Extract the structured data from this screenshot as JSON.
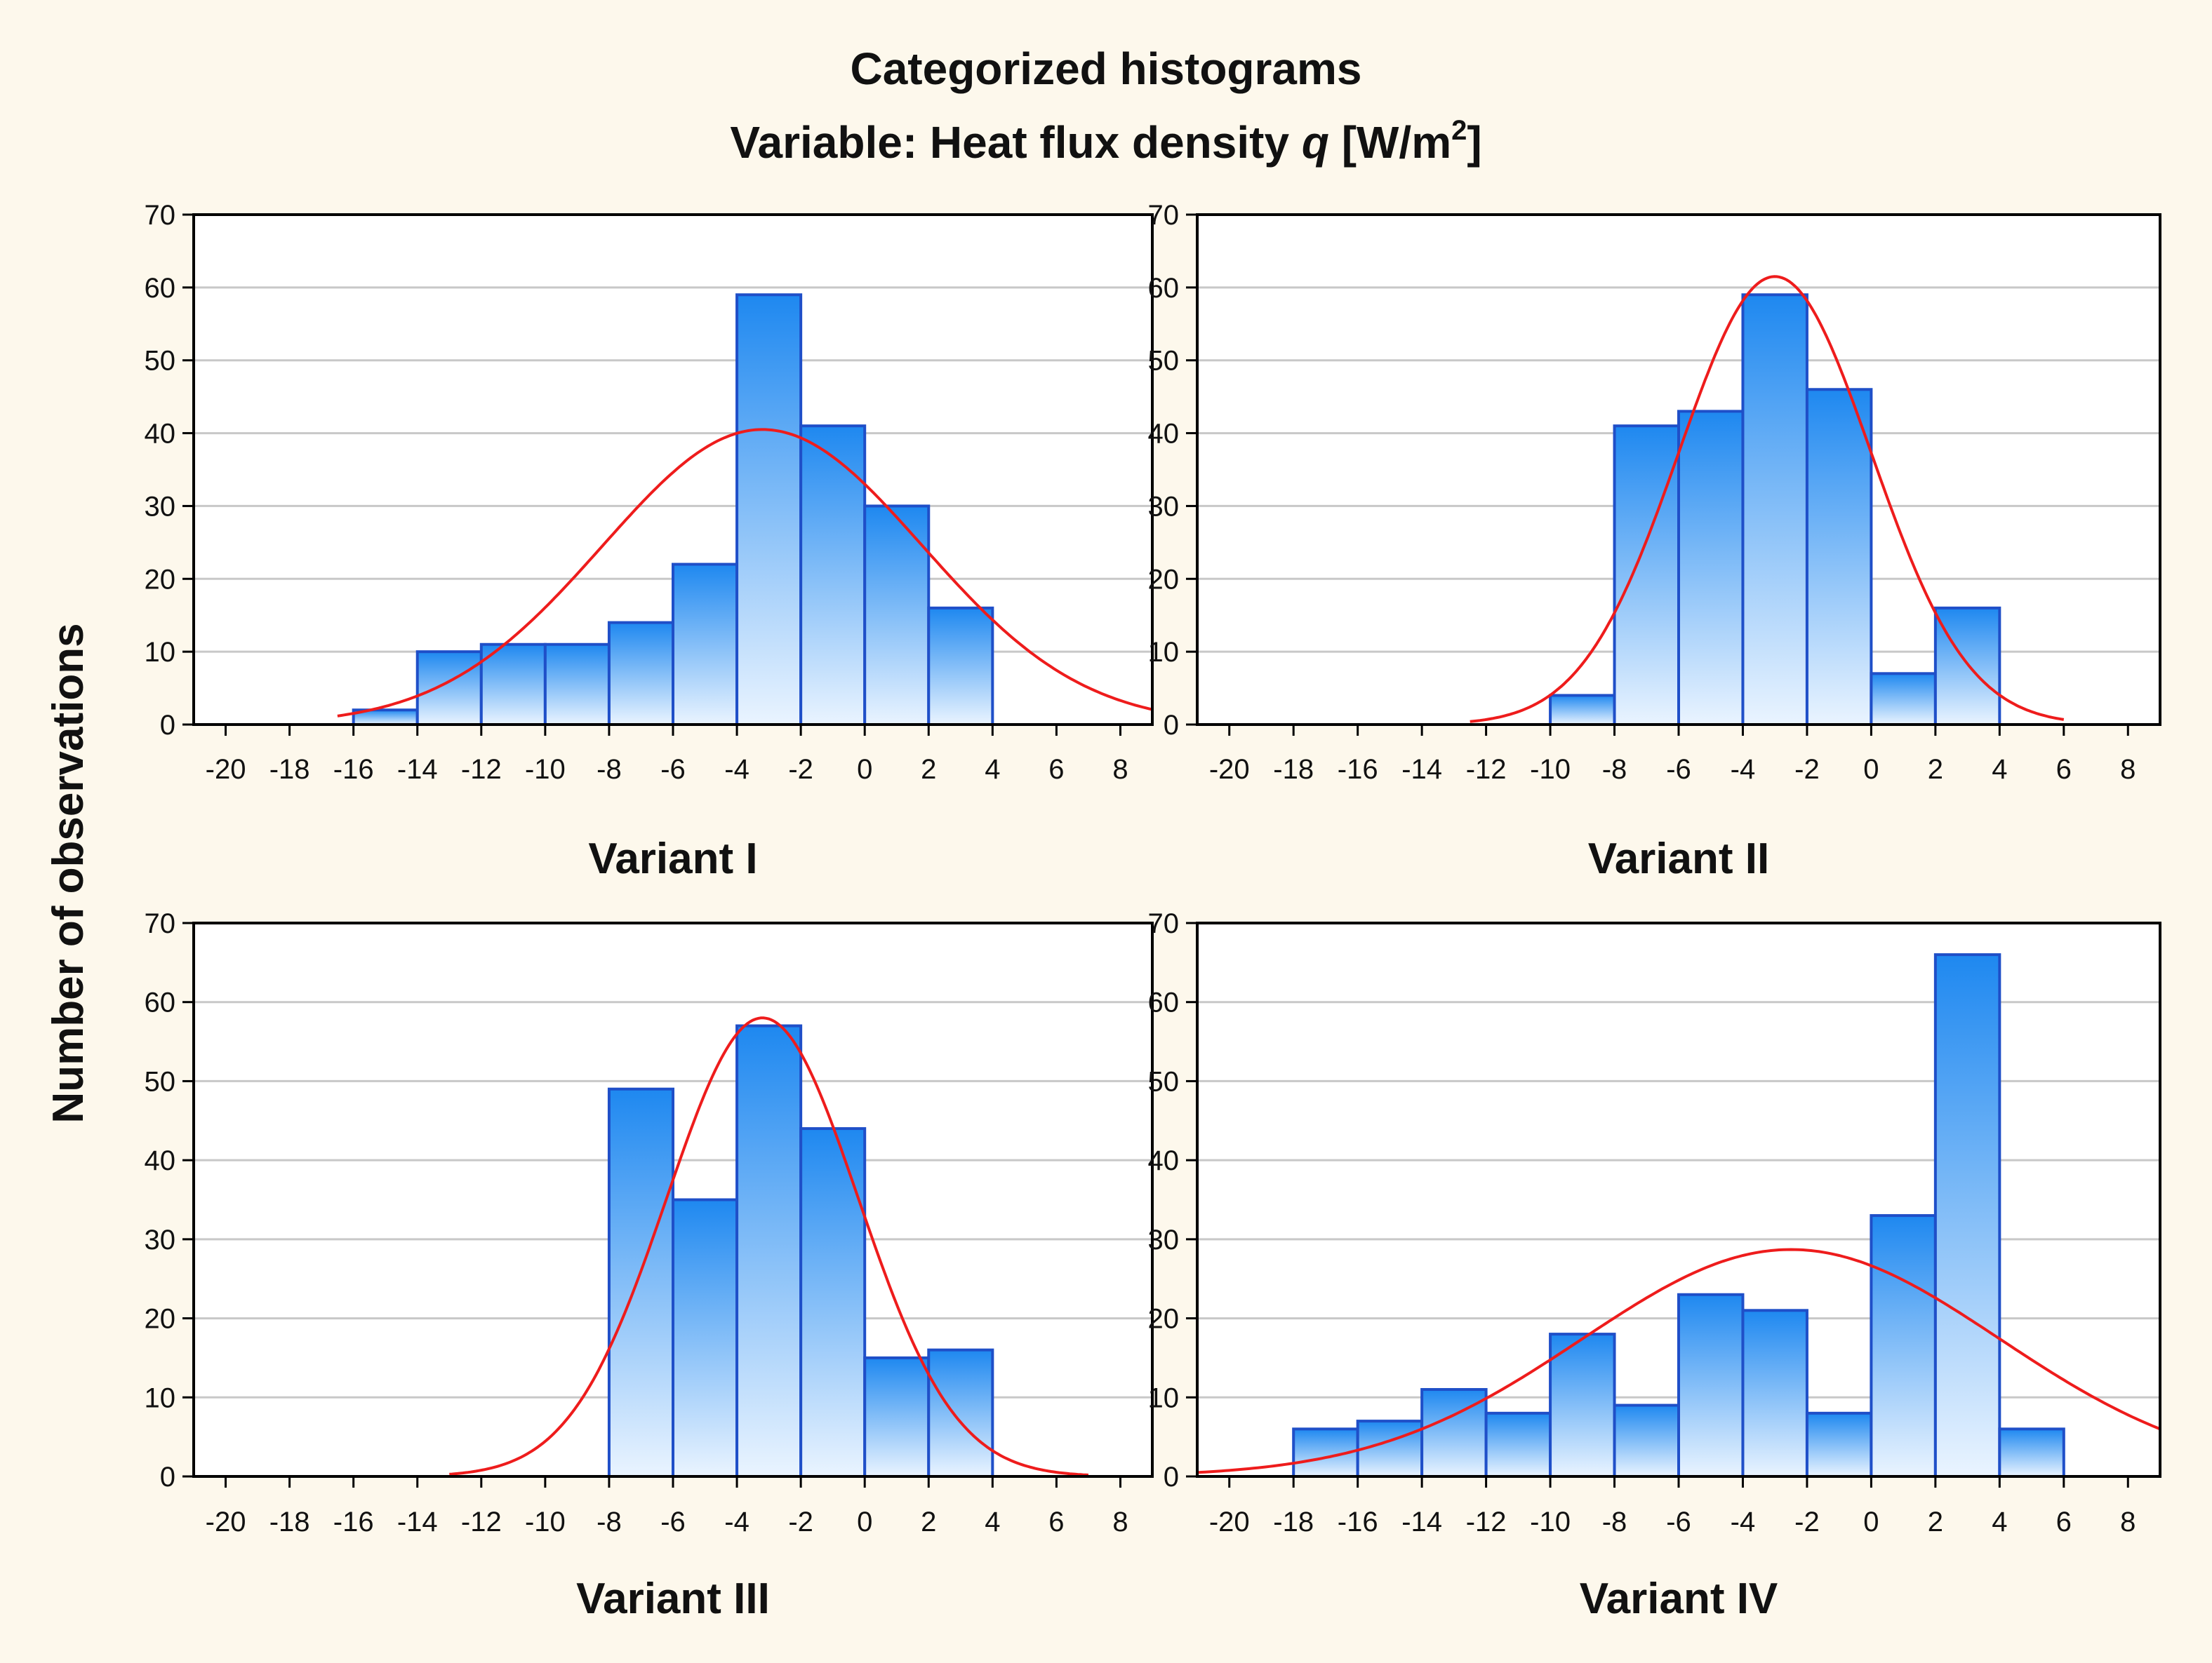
{
  "figure": {
    "title_line1": "Categorized histograms",
    "title_line2_prefix": "Variable: Heat flux density ",
    "title_line2_var": "q",
    "title_line2_unit_open": " [W/m",
    "title_line2_unit_sup": "2",
    "title_line2_unit_close": "]",
    "ylabel": "Number of observations"
  },
  "colors": {
    "background": "#FDF8EC",
    "plot_background": "#FFFFFF",
    "bar_top": "#1E88F0",
    "bar_bottom": "#EAF4FF",
    "bar_edge": "#1F4FC8",
    "curve": "#EE1C1C",
    "grid": "#C8C8C8",
    "axis": "#000000"
  },
  "chart_data": [
    {
      "type": "bar",
      "title": "Variant I",
      "xlabel": "Variant I",
      "ylabel": "Number of observations",
      "xlim": [
        -21,
        9
      ],
      "ylim": [
        0,
        70
      ],
      "xticks": [
        -20,
        -18,
        -16,
        -14,
        -12,
        -10,
        -8,
        -6,
        -4,
        -2,
        0,
        2,
        4,
        6,
        8
      ],
      "yticks": [
        0,
        10,
        20,
        30,
        40,
        50,
        60,
        70
      ],
      "bin_edges": [
        -16,
        -14,
        -12,
        -10,
        -8,
        -6,
        -4,
        -2,
        0,
        2,
        4
      ],
      "values": [
        2,
        10,
        11,
        11,
        14,
        22,
        59,
        41,
        30,
        16
      ],
      "normal_fit": {
        "mean": -3.2,
        "sd": 5.0,
        "peak": 40.5,
        "x_range": [
          -16.5,
          9
        ]
      },
      "grid": true
    },
    {
      "type": "bar",
      "title": "Variant II",
      "xlabel": "Variant II",
      "ylabel": "Number of observations",
      "xlim": [
        -21,
        9
      ],
      "ylim": [
        0,
        70
      ],
      "xticks": [
        -20,
        -18,
        -16,
        -14,
        -12,
        -10,
        -8,
        -6,
        -4,
        -2,
        0,
        2,
        4,
        6,
        8
      ],
      "yticks": [
        0,
        10,
        20,
        30,
        40,
        50,
        60,
        70
      ],
      "bin_edges": [
        -10,
        -8,
        -6,
        -4,
        -2,
        0,
        2,
        4
      ],
      "values": [
        4,
        41,
        43,
        59,
        46,
        7,
        16
      ],
      "normal_fit": {
        "mean": -3.0,
        "sd": 3.0,
        "peak": 61.5,
        "x_range": [
          -12.5,
          6
        ]
      },
      "grid": true
    },
    {
      "type": "bar",
      "title": "Variant III",
      "xlabel": "Variant III",
      "ylabel": "Number of observations",
      "xlim": [
        -21,
        9
      ],
      "ylim": [
        0,
        70
      ],
      "xticks": [
        -20,
        -18,
        -16,
        -14,
        -12,
        -10,
        -8,
        -6,
        -4,
        -2,
        0,
        2,
        4,
        6,
        8
      ],
      "yticks": [
        0,
        10,
        20,
        30,
        40,
        50,
        60,
        70
      ],
      "bin_edges": [
        -8,
        -6,
        -4,
        -2,
        0,
        2,
        4
      ],
      "values": [
        49,
        35,
        57,
        44,
        15,
        16
      ],
      "normal_fit": {
        "mean": -3.2,
        "sd": 3.0,
        "peak": 58.0,
        "x_range": [
          -13,
          7
        ]
      },
      "grid": true
    },
    {
      "type": "bar",
      "title": "Variant IV",
      "xlabel": "Variant IV",
      "ylabel": "Number of observations",
      "xlim": [
        -21,
        9
      ],
      "ylim": [
        0,
        70
      ],
      "xticks": [
        -20,
        -18,
        -16,
        -14,
        -12,
        -10,
        -8,
        -6,
        -4,
        -2,
        0,
        2,
        4,
        6,
        8
      ],
      "yticks": [
        0,
        10,
        20,
        30,
        40,
        50,
        60,
        70
      ],
      "bin_edges": [
        -18,
        -16,
        -14,
        -12,
        -10,
        -8,
        -6,
        -4,
        -2,
        0,
        2,
        4,
        6
      ],
      "values": [
        6,
        7,
        11,
        8,
        18,
        9,
        23,
        21,
        8,
        33,
        66,
        6
      ],
      "normal_fit": {
        "mean": -2.5,
        "sd": 6.5,
        "peak": 28.7,
        "x_range": [
          -21,
          9
        ]
      },
      "grid": true
    }
  ]
}
